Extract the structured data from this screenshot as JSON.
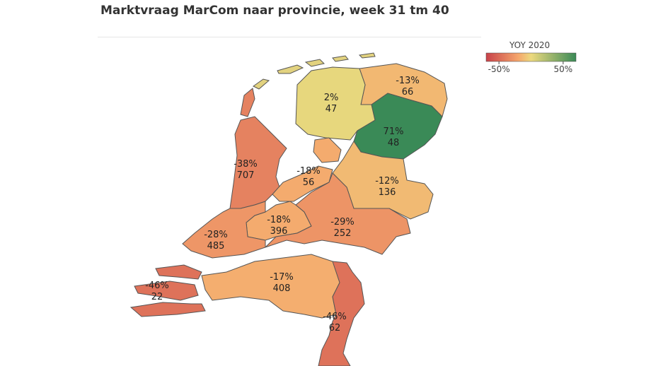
{
  "title": "Marktvraag MarCom naar provincie, week 31 tm 40",
  "legend": {
    "title": "YOY 2020",
    "lim": [
      -70,
      70
    ],
    "ticks": [
      {
        "value": -50,
        "label": "-50%"
      },
      {
        "value": 50,
        "label": "50%"
      }
    ],
    "colorscale": [
      [
        -70,
        "#c8424a"
      ],
      [
        -20,
        "#f5a66c"
      ],
      [
        0,
        "#ecd97e"
      ],
      [
        70,
        "#3a8a57"
      ]
    ]
  },
  "regions": [
    {
      "change": {
        "value": -13,
        "label": "-13%"
      },
      "count": 66
    },
    {
      "change": {
        "value": 2,
        "label": "2%"
      },
      "count": 47
    },
    {
      "change": {
        "value": 71,
        "label": "71%"
      },
      "count": 48
    },
    {
      "change": {
        "value": -38,
        "label": "-38%"
      },
      "count": 707
    },
    {
      "change": {
        "value": -18,
        "label": "-18%"
      },
      "count": 56
    },
    {
      "change": {
        "value": -12,
        "label": "-12%"
      },
      "count": 136
    },
    {
      "change": {
        "value": -18,
        "label": "-18%"
      },
      "count": 396
    },
    {
      "change": {
        "value": -29,
        "label": "-29%"
      },
      "count": 252
    },
    {
      "change": {
        "value": -28,
        "label": "-28%"
      },
      "count": 485
    },
    {
      "change": {
        "value": -46,
        "label": "-46%"
      },
      "count": 22
    },
    {
      "change": {
        "value": -17,
        "label": "-17%"
      },
      "count": 408
    },
    {
      "change": {
        "value": -46,
        "label": "-46%"
      },
      "count": 62
    }
  ]
}
